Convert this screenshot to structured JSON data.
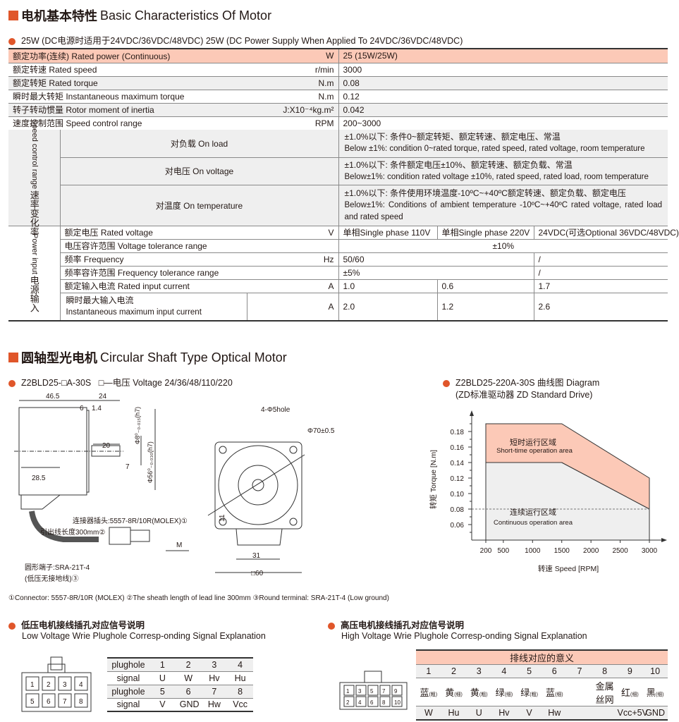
{
  "section1": {
    "title_cn": "电机基本特性",
    "title_en": "Basic Characteristics Of Motor"
  },
  "spec_subtitle": "25W (DC电源时适用于24VDC/36VDC/48VDC)  25W (DC Power Supply When Applied To 24VDC/36VDC/48VDC)",
  "spec_rows": [
    {
      "label": "额定功率(连续) Rated power (Continuous)",
      "unit": "W",
      "value": "25 (15W/25W)"
    },
    {
      "label": "额定转速 Rated speed",
      "unit": "r/min",
      "value": "3000"
    },
    {
      "label": "额定转矩 Rated torque",
      "unit": "N.m",
      "value": "0.08"
    },
    {
      "label": "瞬时最大转矩 Instantaneous maximum torque",
      "unit": "N.m",
      "value": "0.12"
    },
    {
      "label": "转子转动惯量 Rotor moment of inertia",
      "unit": "J:X10⁻⁴kg.m²",
      "value": "0.042"
    },
    {
      "label": "速度控制范围 Speed control range",
      "unit": "RPM",
      "value": "200~3000"
    }
  ],
  "speed_group": {
    "label_cn": "速率变化率",
    "label_en": "Speed control range",
    "rows": [
      {
        "label": "对负载 On load",
        "value_cn": "±1.0%以下: 条件0~额定转矩、额定转速、额定电压、常温",
        "value_en": "Below ±1%: condition 0~rated torque, rated speed, rated voltage, room temperature"
      },
      {
        "label": "对电压 On voltage",
        "value_cn": "±1.0%以下: 条件额定电压±10%、额定转速、额定负载、常温",
        "value_en": "Below±1%: condition rated voltage ±10%, rated speed, rated load, room temperature"
      },
      {
        "label": "对温度 On temperature",
        "value_cn": "±1.0%以下: 条件使用环境温度-10ºC~+40ºC额定转速、额定负载、额定电压",
        "value_en": "Below±1%: Conditions of ambient temperature -10ºC~+40ºC rated voltage, rated load and rated speed"
      }
    ]
  },
  "power_group": {
    "label_cn": "电源输入",
    "label_en": "Power input",
    "rows": [
      {
        "label": "额定电压 Rated voltage",
        "unit": "V",
        "v1": "单相Single phase 110V",
        "v2": "单相Single phase 220V",
        "v3": "24VDC(可选Optional 36VDC/48VDC)"
      },
      {
        "label": "电压容许范围 Voltage tolerance range",
        "unit": "",
        "v_all": "±10%"
      },
      {
        "label": "频率 Frequency",
        "unit": "Hz",
        "v12": "50/60",
        "v3": "/"
      },
      {
        "label": "频率容许范围 Frequency tolerance range",
        "unit": "",
        "v12": "±5%",
        "v3": "/"
      },
      {
        "label": "额定输入电流 Rated input current",
        "unit": "A",
        "v1": "1.0",
        "v2": "0.6",
        "v3": "1.7"
      },
      {
        "label_cn": "瞬时最大输入电流",
        "label_en": "Instantaneous maximum input current",
        "unit": "A",
        "v1": "2.0",
        "v2": "1.2",
        "v3": "2.6"
      }
    ]
  },
  "section2": {
    "title_cn": "圆轴型光电机",
    "title_en": "Circular Shaft Type Optical Motor"
  },
  "model": {
    "code": "Z2BLD25-□A-30S",
    "voltage_note": "□—电压 Voltage 24/36/48/110/220"
  },
  "drawing": {
    "dims": [
      "46.5",
      "24",
      "6",
      "1.4",
      "20",
      "28.5",
      "7",
      "Φ8⁰₋₀.₀₁₅(h7)",
      "Φ56⁰₋₀.₀₃₀(h7)",
      "4-Φ5hole",
      "Φ70±0.5",
      "11",
      "31",
      "□60",
      "M"
    ],
    "callouts": [
      "连接器插头:5557-8R/10R(MOLEX)①",
      "引出线长度300mm②",
      "圆形端子:SRA-21T-4",
      "(低压无接地线)③"
    ],
    "footnote": "①Connector: 5557-8R/10R (MOLEX)  ②The sheath length of lead line 300mm  ③Round terminal: SRA-21T-4 (Low ground)"
  },
  "chart_title": "Z2BLD25-220A-30S 曲线图 Diagram",
  "chart_subtitle": "(ZD标准驱动器 ZD Standard Drive)",
  "chart_data": {
    "type": "area",
    "xlabel": "转速 Speed [RPM]",
    "ylabel": "转矩 Torque [N.m]",
    "x_ticks": [
      200,
      500,
      1000,
      1500,
      2000,
      2500,
      3000
    ],
    "y_ticks": [
      0.06,
      0.08,
      0.1,
      0.12,
      0.14,
      0.16,
      0.18
    ],
    "xlim": [
      0,
      3000
    ],
    "ylim": [
      0.04,
      0.2
    ],
    "series": [
      {
        "name": "短时运行区域 Short-time operation area",
        "name_cn": "短时运行区域",
        "name_en": "Short-time operation area",
        "color": "#fcc9b7",
        "x": [
          200,
          1500,
          3000
        ],
        "y": [
          0.19,
          0.19,
          0.12
        ]
      },
      {
        "name": "连续运行区域 Continuous operation area",
        "name_cn": "连续运行区域",
        "name_en": "Continuous operation area",
        "color": "#efefef",
        "x": [
          200,
          1500,
          3000
        ],
        "y": [
          0.14,
          0.14,
          0.08
        ]
      }
    ],
    "reference_line": 0.08
  },
  "low_voltage": {
    "title_cn": "低压电机接线插孔对应信号说明",
    "title_en": "Low Voltage  Wrie Plughole Corresp-onding Signal Explanation",
    "row_labels": [
      "plughole",
      "signal"
    ],
    "rows": [
      [
        "1",
        "2",
        "3",
        "4"
      ],
      [
        "U",
        "W",
        "Hv",
        "Hu"
      ],
      [
        "5",
        "6",
        "7",
        "8"
      ],
      [
        "V",
        "GND",
        "Hw",
        "Vcc"
      ]
    ]
  },
  "high_voltage": {
    "title_cn": "高压电机接线插孔对应信号说明",
    "title_en": "High Voltage  Wrie Plughole Corresp-onding Signal Explanation",
    "header": "排线对应的意义",
    "pins": [
      "1",
      "2",
      "3",
      "4",
      "5",
      "6",
      "7",
      "8",
      "9",
      "10"
    ],
    "colors": [
      [
        "蓝",
        "(粗)"
      ],
      [
        "黄",
        "(细)"
      ],
      [
        "黄",
        "(粗)"
      ],
      [
        "绿",
        "(细)"
      ],
      [
        "绿",
        "(粗)"
      ],
      [
        "蓝",
        "(细)"
      ],
      [
        "",
        ""
      ],
      [
        "金属丝网",
        ""
      ],
      [
        "红",
        "(细)"
      ],
      [
        "黑",
        "(细)"
      ]
    ],
    "signals": [
      "W",
      "Hu",
      "U",
      "Hv",
      "V",
      "Hw",
      "",
      "",
      "Vcc+5V",
      "GND"
    ]
  },
  "accent": "#e0562a"
}
